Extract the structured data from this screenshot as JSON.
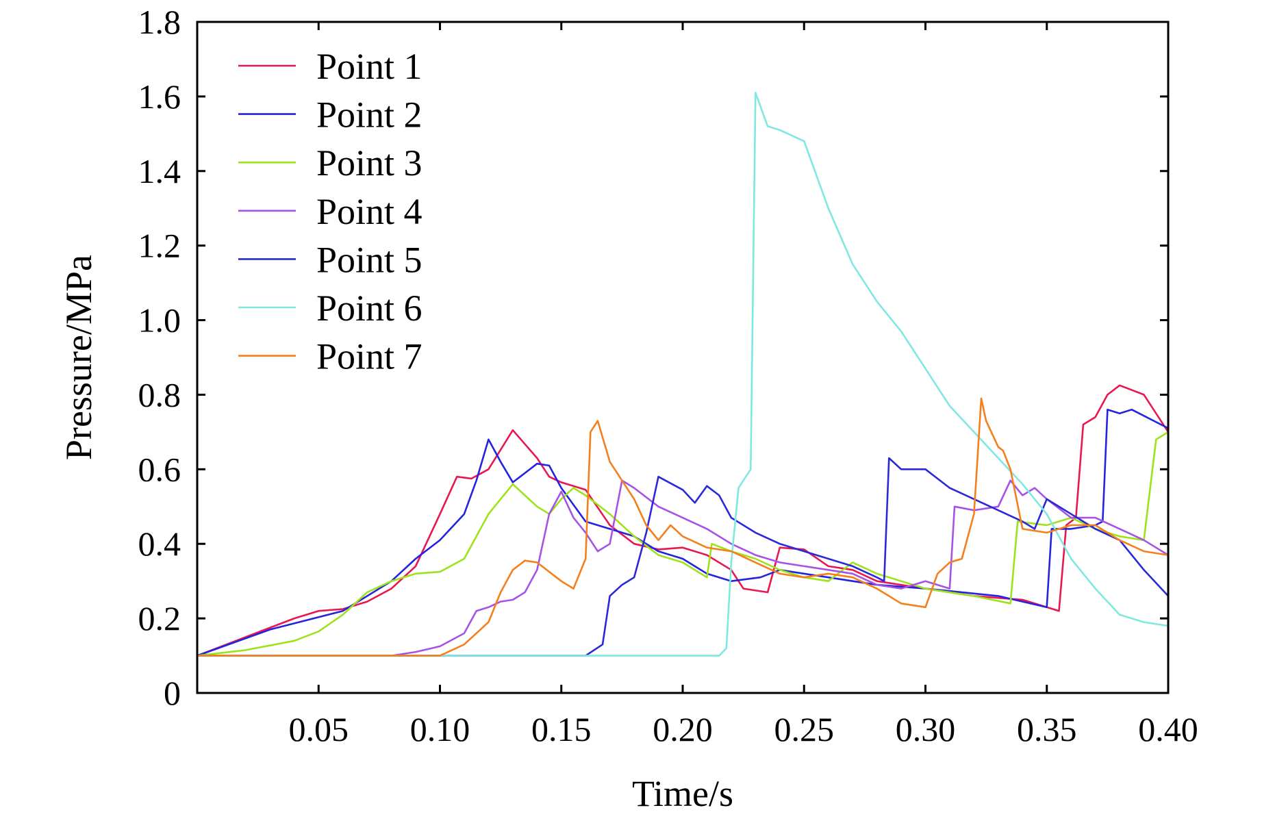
{
  "chart_data": {
    "type": "line",
    "title": "",
    "xlabel": "Time/s",
    "ylabel": "Pressure/MPa",
    "xlim": [
      0,
      0.4
    ],
    "ylim": [
      0,
      1.8
    ],
    "x_ticks": [
      0.05,
      0.1,
      0.15,
      0.2,
      0.25,
      0.3,
      0.35,
      0.4
    ],
    "x_tick_labels": [
      "0.05",
      "0.10",
      "0.15",
      "0.20",
      "0.25",
      "0.30",
      "0.35",
      "0.40"
    ],
    "y_ticks": [
      0,
      0.2,
      0.4,
      0.6,
      0.8,
      1.0,
      1.2,
      1.4,
      1.6,
      1.8
    ],
    "y_tick_labels": [
      "0",
      "0.2",
      "0.4",
      "0.6",
      "0.8",
      "1.0",
      "1.2",
      "1.4",
      "1.6",
      "1.8"
    ],
    "grid": false,
    "legend_position": "top-left",
    "series": [
      {
        "name": "Point 1",
        "color": "#e8174f",
        "points": [
          [
            0.0,
            0.1
          ],
          [
            0.02,
            0.15
          ],
          [
            0.04,
            0.2
          ],
          [
            0.05,
            0.22
          ],
          [
            0.06,
            0.225
          ],
          [
            0.07,
            0.245
          ],
          [
            0.08,
            0.28
          ],
          [
            0.09,
            0.34
          ],
          [
            0.1,
            0.48
          ],
          [
            0.107,
            0.58
          ],
          [
            0.113,
            0.575
          ],
          [
            0.12,
            0.6
          ],
          [
            0.13,
            0.705
          ],
          [
            0.14,
            0.63
          ],
          [
            0.145,
            0.58
          ],
          [
            0.15,
            0.565
          ],
          [
            0.16,
            0.545
          ],
          [
            0.17,
            0.45
          ],
          [
            0.18,
            0.4
          ],
          [
            0.19,
            0.385
          ],
          [
            0.2,
            0.39
          ],
          [
            0.21,
            0.37
          ],
          [
            0.22,
            0.33
          ],
          [
            0.225,
            0.28
          ],
          [
            0.235,
            0.27
          ],
          [
            0.24,
            0.39
          ],
          [
            0.25,
            0.385
          ],
          [
            0.26,
            0.34
          ],
          [
            0.27,
            0.33
          ],
          [
            0.28,
            0.3
          ],
          [
            0.3,
            0.28
          ],
          [
            0.32,
            0.26
          ],
          [
            0.34,
            0.25
          ],
          [
            0.355,
            0.22
          ],
          [
            0.358,
            0.45
          ],
          [
            0.362,
            0.47
          ],
          [
            0.365,
            0.72
          ],
          [
            0.37,
            0.74
          ],
          [
            0.375,
            0.8
          ],
          [
            0.38,
            0.825
          ],
          [
            0.39,
            0.8
          ],
          [
            0.4,
            0.7
          ]
        ]
      },
      {
        "name": "Point 2",
        "color": "#2323e0",
        "points": [
          [
            0.0,
            0.1
          ],
          [
            0.03,
            0.17
          ],
          [
            0.06,
            0.22
          ],
          [
            0.08,
            0.3
          ],
          [
            0.09,
            0.36
          ],
          [
            0.1,
            0.41
          ],
          [
            0.11,
            0.48
          ],
          [
            0.115,
            0.57
          ],
          [
            0.12,
            0.68
          ],
          [
            0.125,
            0.62
          ],
          [
            0.13,
            0.565
          ],
          [
            0.14,
            0.615
          ],
          [
            0.145,
            0.61
          ],
          [
            0.15,
            0.55
          ],
          [
            0.16,
            0.46
          ],
          [
            0.17,
            0.44
          ],
          [
            0.18,
            0.42
          ],
          [
            0.19,
            0.38
          ],
          [
            0.2,
            0.36
          ],
          [
            0.21,
            0.32
          ],
          [
            0.22,
            0.3
          ],
          [
            0.232,
            0.31
          ],
          [
            0.24,
            0.33
          ],
          [
            0.25,
            0.32
          ],
          [
            0.26,
            0.31
          ],
          [
            0.28,
            0.29
          ],
          [
            0.3,
            0.28
          ],
          [
            0.33,
            0.26
          ],
          [
            0.35,
            0.23
          ],
          [
            0.352,
            0.44
          ],
          [
            0.36,
            0.44
          ],
          [
            0.37,
            0.45
          ],
          [
            0.373,
            0.46
          ],
          [
            0.375,
            0.76
          ],
          [
            0.38,
            0.75
          ],
          [
            0.385,
            0.76
          ],
          [
            0.4,
            0.71
          ]
        ]
      },
      {
        "name": "Point 3",
        "color": "#9ee21a",
        "points": [
          [
            0.0,
            0.1
          ],
          [
            0.02,
            0.115
          ],
          [
            0.04,
            0.14
          ],
          [
            0.05,
            0.165
          ],
          [
            0.06,
            0.21
          ],
          [
            0.07,
            0.27
          ],
          [
            0.08,
            0.3
          ],
          [
            0.09,
            0.32
          ],
          [
            0.1,
            0.325
          ],
          [
            0.11,
            0.36
          ],
          [
            0.12,
            0.48
          ],
          [
            0.13,
            0.56
          ],
          [
            0.14,
            0.5
          ],
          [
            0.145,
            0.48
          ],
          [
            0.15,
            0.52
          ],
          [
            0.155,
            0.55
          ],
          [
            0.16,
            0.53
          ],
          [
            0.17,
            0.48
          ],
          [
            0.18,
            0.42
          ],
          [
            0.19,
            0.37
          ],
          [
            0.2,
            0.35
          ],
          [
            0.205,
            0.33
          ],
          [
            0.21,
            0.31
          ],
          [
            0.212,
            0.4
          ],
          [
            0.22,
            0.38
          ],
          [
            0.23,
            0.36
          ],
          [
            0.24,
            0.33
          ],
          [
            0.25,
            0.31
          ],
          [
            0.26,
            0.3
          ],
          [
            0.27,
            0.35
          ],
          [
            0.28,
            0.32
          ],
          [
            0.3,
            0.28
          ],
          [
            0.32,
            0.26
          ],
          [
            0.335,
            0.24
          ],
          [
            0.338,
            0.46
          ],
          [
            0.35,
            0.45
          ],
          [
            0.36,
            0.47
          ],
          [
            0.37,
            0.44
          ],
          [
            0.38,
            0.42
          ],
          [
            0.39,
            0.41
          ],
          [
            0.395,
            0.68
          ],
          [
            0.4,
            0.7
          ]
        ]
      },
      {
        "name": "Point 4",
        "color": "#a652e6",
        "points": [
          [
            0.0,
            0.1
          ],
          [
            0.08,
            0.1
          ],
          [
            0.09,
            0.11
          ],
          [
            0.1,
            0.125
          ],
          [
            0.11,
            0.16
          ],
          [
            0.115,
            0.22
          ],
          [
            0.12,
            0.23
          ],
          [
            0.125,
            0.245
          ],
          [
            0.13,
            0.25
          ],
          [
            0.135,
            0.27
          ],
          [
            0.14,
            0.33
          ],
          [
            0.145,
            0.48
          ],
          [
            0.15,
            0.54
          ],
          [
            0.155,
            0.47
          ],
          [
            0.16,
            0.43
          ],
          [
            0.165,
            0.38
          ],
          [
            0.17,
            0.4
          ],
          [
            0.175,
            0.57
          ],
          [
            0.18,
            0.55
          ],
          [
            0.19,
            0.5
          ],
          [
            0.2,
            0.47
          ],
          [
            0.21,
            0.44
          ],
          [
            0.22,
            0.4
          ],
          [
            0.23,
            0.37
          ],
          [
            0.24,
            0.35
          ],
          [
            0.25,
            0.34
          ],
          [
            0.26,
            0.33
          ],
          [
            0.27,
            0.32
          ],
          [
            0.28,
            0.29
          ],
          [
            0.29,
            0.28
          ],
          [
            0.3,
            0.3
          ],
          [
            0.31,
            0.28
          ],
          [
            0.312,
            0.5
          ],
          [
            0.32,
            0.49
          ],
          [
            0.33,
            0.5
          ],
          [
            0.335,
            0.57
          ],
          [
            0.34,
            0.53
          ],
          [
            0.345,
            0.55
          ],
          [
            0.35,
            0.52
          ],
          [
            0.36,
            0.47
          ],
          [
            0.37,
            0.47
          ],
          [
            0.38,
            0.44
          ],
          [
            0.39,
            0.41
          ],
          [
            0.4,
            0.37
          ]
        ]
      },
      {
        "name": "Point 5",
        "color": "#2a28d9",
        "points": [
          [
            0.0,
            0.1
          ],
          [
            0.16,
            0.1
          ],
          [
            0.167,
            0.13
          ],
          [
            0.17,
            0.26
          ],
          [
            0.175,
            0.29
          ],
          [
            0.18,
            0.31
          ],
          [
            0.185,
            0.43
          ],
          [
            0.19,
            0.58
          ],
          [
            0.2,
            0.545
          ],
          [
            0.205,
            0.51
          ],
          [
            0.21,
            0.555
          ],
          [
            0.215,
            0.53
          ],
          [
            0.22,
            0.47
          ],
          [
            0.23,
            0.43
          ],
          [
            0.24,
            0.4
          ],
          [
            0.25,
            0.38
          ],
          [
            0.26,
            0.36
          ],
          [
            0.27,
            0.34
          ],
          [
            0.28,
            0.31
          ],
          [
            0.283,
            0.3
          ],
          [
            0.285,
            0.63
          ],
          [
            0.29,
            0.6
          ],
          [
            0.3,
            0.6
          ],
          [
            0.31,
            0.55
          ],
          [
            0.32,
            0.52
          ],
          [
            0.33,
            0.49
          ],
          [
            0.34,
            0.46
          ],
          [
            0.345,
            0.44
          ],
          [
            0.35,
            0.52
          ],
          [
            0.36,
            0.48
          ],
          [
            0.37,
            0.44
          ],
          [
            0.38,
            0.41
          ],
          [
            0.39,
            0.33
          ],
          [
            0.4,
            0.26
          ]
        ]
      },
      {
        "name": "Point 6",
        "color": "#7fe8e0",
        "points": [
          [
            0.0,
            0.1
          ],
          [
            0.215,
            0.1
          ],
          [
            0.218,
            0.12
          ],
          [
            0.22,
            0.35
          ],
          [
            0.223,
            0.55
          ],
          [
            0.228,
            0.6
          ],
          [
            0.23,
            1.61
          ],
          [
            0.235,
            1.52
          ],
          [
            0.24,
            1.51
          ],
          [
            0.25,
            1.48
          ],
          [
            0.26,
            1.3
          ],
          [
            0.27,
            1.15
          ],
          [
            0.28,
            1.05
          ],
          [
            0.29,
            0.97
          ],
          [
            0.3,
            0.87
          ],
          [
            0.31,
            0.77
          ],
          [
            0.32,
            0.7
          ],
          [
            0.33,
            0.63
          ],
          [
            0.34,
            0.56
          ],
          [
            0.35,
            0.48
          ],
          [
            0.36,
            0.36
          ],
          [
            0.37,
            0.28
          ],
          [
            0.38,
            0.21
          ],
          [
            0.39,
            0.19
          ],
          [
            0.4,
            0.18
          ]
        ]
      },
      {
        "name": "Point 7",
        "color": "#f57f1c",
        "points": [
          [
            0.0,
            0.1
          ],
          [
            0.1,
            0.1
          ],
          [
            0.11,
            0.13
          ],
          [
            0.12,
            0.19
          ],
          [
            0.125,
            0.27
          ],
          [
            0.13,
            0.33
          ],
          [
            0.135,
            0.355
          ],
          [
            0.14,
            0.35
          ],
          [
            0.15,
            0.3
          ],
          [
            0.155,
            0.28
          ],
          [
            0.16,
            0.36
          ],
          [
            0.162,
            0.7
          ],
          [
            0.165,
            0.73
          ],
          [
            0.17,
            0.62
          ],
          [
            0.18,
            0.52
          ],
          [
            0.185,
            0.45
          ],
          [
            0.19,
            0.41
          ],
          [
            0.195,
            0.45
          ],
          [
            0.2,
            0.42
          ],
          [
            0.21,
            0.39
          ],
          [
            0.22,
            0.38
          ],
          [
            0.23,
            0.35
          ],
          [
            0.24,
            0.32
          ],
          [
            0.25,
            0.31
          ],
          [
            0.26,
            0.32
          ],
          [
            0.27,
            0.31
          ],
          [
            0.28,
            0.28
          ],
          [
            0.29,
            0.24
          ],
          [
            0.3,
            0.23
          ],
          [
            0.305,
            0.32
          ],
          [
            0.31,
            0.35
          ],
          [
            0.315,
            0.36
          ],
          [
            0.32,
            0.48
          ],
          [
            0.323,
            0.79
          ],
          [
            0.325,
            0.73
          ],
          [
            0.33,
            0.66
          ],
          [
            0.332,
            0.65
          ],
          [
            0.335,
            0.6
          ],
          [
            0.34,
            0.44
          ],
          [
            0.35,
            0.43
          ],
          [
            0.36,
            0.45
          ],
          [
            0.37,
            0.45
          ],
          [
            0.38,
            0.41
          ],
          [
            0.39,
            0.38
          ],
          [
            0.4,
            0.37
          ]
        ]
      }
    ]
  }
}
